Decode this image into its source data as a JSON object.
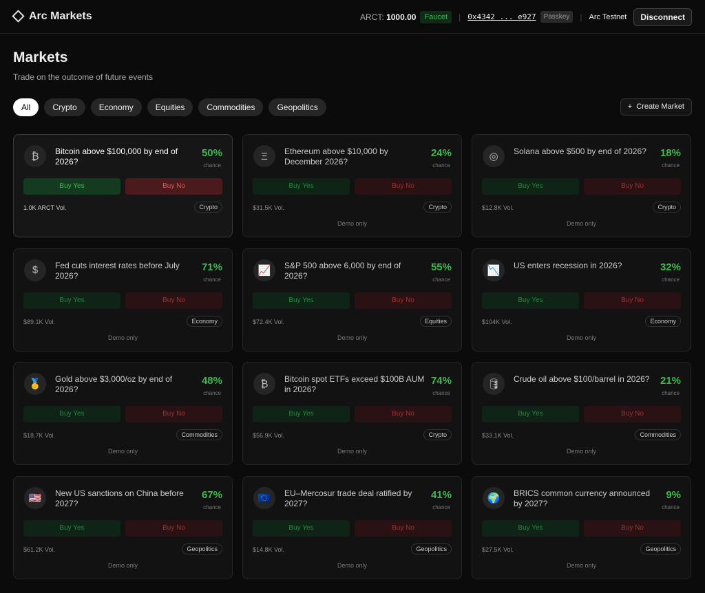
{
  "header": {
    "brand": "Arc Markets",
    "balance_label": "ARCT:",
    "balance": "1000.00",
    "faucet": "Faucet",
    "address": "0x4342 ... e927",
    "passkey": "Passkey",
    "network": "Arc Testnet",
    "disconnect": "Disconnect"
  },
  "page": {
    "title": "Markets",
    "subtitle": "Trade on the outcome of future events"
  },
  "filters": [
    "All",
    "Crypto",
    "Economy",
    "Equities",
    "Commodities",
    "Geopolitics"
  ],
  "create_market": "Create Market",
  "markets": [
    {
      "icon": "₿",
      "question": "Bitcoin above $100,000 by end of 2026?",
      "chance": "50%",
      "chance_label": "chance",
      "buy_yes": "Buy Yes",
      "buy_no": "Buy No",
      "volume": "1.0K ARCT Vol.",
      "category": "Crypto"
    },
    {
      "icon": "Ξ",
      "question": "Ethereum above $10,000 by December 2026?",
      "chance": "24%",
      "chance_label": "chance",
      "buy_yes": "Buy Yes",
      "buy_no": "Buy No",
      "volume": "$31.5K Vol.",
      "category": "Crypto",
      "note": "Demo only"
    },
    {
      "icon": "◎",
      "question": "Solana above $500 by end of 2026?",
      "chance": "18%",
      "chance_label": "chance",
      "buy_yes": "Buy Yes",
      "buy_no": "Buy No",
      "volume": "$12.8K Vol.",
      "category": "Crypto",
      "note": "Demo only"
    },
    {
      "icon": "$",
      "question": "Fed cuts interest rates before July 2026?",
      "chance": "71%",
      "chance_label": "chance",
      "buy_yes": "Buy Yes",
      "buy_no": "Buy No",
      "volume": "$89.1K Vol.",
      "category": "Economy",
      "note": "Demo only"
    },
    {
      "icon": "📈",
      "question": "S&P 500 above 6,000 by end of 2026?",
      "chance": "55%",
      "chance_label": "chance",
      "buy_yes": "Buy Yes",
      "buy_no": "Buy No",
      "volume": "$72.4K Vol.",
      "category": "Equities",
      "note": "Demo only"
    },
    {
      "icon": "📉",
      "question": "US enters recession in 2026?",
      "chance": "32%",
      "chance_label": "chance",
      "buy_yes": "Buy Yes",
      "buy_no": "Buy No",
      "volume": "$104K Vol.",
      "category": "Economy",
      "note": "Demo only"
    },
    {
      "icon": "🥇",
      "question": "Gold above $3,000/oz by end of 2026?",
      "chance": "48%",
      "chance_label": "chance",
      "buy_yes": "Buy Yes",
      "buy_no": "Buy No",
      "volume": "$18.7K Vol.",
      "category": "Commodities",
      "note": "Demo only"
    },
    {
      "icon": "₿",
      "question": "Bitcoin spot ETFs exceed $100B AUM in 2026?",
      "chance": "74%",
      "chance_label": "chance",
      "buy_yes": "Buy Yes",
      "buy_no": "Buy No",
      "volume": "$56.9K Vol.",
      "category": "Crypto",
      "note": "Demo only"
    },
    {
      "icon": "🛢",
      "question": "Crude oil above $100/barrel in 2026?",
      "chance": "21%",
      "chance_label": "chance",
      "buy_yes": "Buy Yes",
      "buy_no": "Buy No",
      "volume": "$33.1K Vol.",
      "category": "Commodities",
      "note": "Demo only"
    },
    {
      "icon": "🇺🇸",
      "question": "New US sanctions on China before 2027?",
      "chance": "67%",
      "chance_label": "chance",
      "buy_yes": "Buy Yes",
      "buy_no": "Buy No",
      "volume": "$61.2K Vol.",
      "category": "Geopolitics",
      "note": "Demo only"
    },
    {
      "icon": "🇪🇺",
      "question": "EU–Mercosur trade deal ratified by 2027?",
      "chance": "41%",
      "chance_label": "chance",
      "buy_yes": "Buy Yes",
      "buy_no": "Buy No",
      "volume": "$14.8K Vol.",
      "category": "Geopolitics",
      "note": "Demo only"
    },
    {
      "icon": "🌍",
      "question": "BRICS common currency announced by 2027?",
      "chance": "9%",
      "chance_label": "chance",
      "buy_yes": "Buy Yes",
      "buy_no": "Buy No",
      "volume": "$27.5K Vol.",
      "category": "Geopolitics",
      "note": "Demo only"
    }
  ]
}
